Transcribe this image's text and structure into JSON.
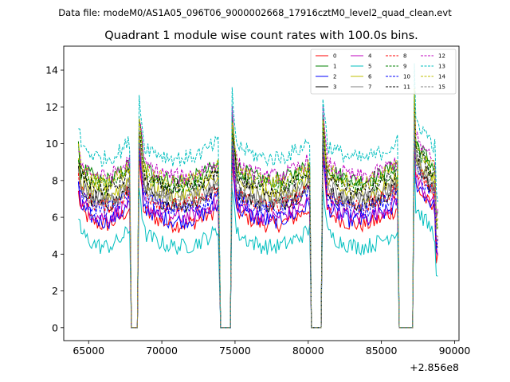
{
  "figure": {
    "suptitle": "Data file: modeM0/AS1A05_096T06_9000002668_17916cztM0_level2_quad_clean.evt",
    "offset_label": "+2.856e8"
  },
  "chart_data": {
    "type": "line",
    "title": "Quadrant 1 module wise count rates with 100.0s bins.",
    "xlabel": "",
    "ylabel": "",
    "x_offset": 285600000,
    "xlim": [
      63300,
      90300
    ],
    "ylim": [
      -0.7,
      15.3
    ],
    "x_ticks": [
      65000,
      70000,
      75000,
      80000,
      85000,
      90000
    ],
    "x_tick_labels": [
      "65000",
      "70000",
      "75000",
      "80000",
      "85000",
      "90000"
    ],
    "y_ticks": [
      0,
      2,
      4,
      6,
      8,
      10,
      12,
      14
    ],
    "y_tick_labels": [
      "0",
      "2",
      "4",
      "6",
      "8",
      "10",
      "12",
      "14"
    ],
    "legend_location": "upper right",
    "segments": [
      {
        "start": 64300,
        "end": 67800
      },
      {
        "start": 68450,
        "end": 73900
      },
      {
        "start": 74800,
        "end": 80100
      },
      {
        "start": 81000,
        "end": 86100
      },
      {
        "start": 87250,
        "end": 88900
      }
    ],
    "gap_level": 0,
    "series": [
      {
        "name": "0",
        "color": "#ff0000",
        "dash": "solid",
        "base": 6.2
      },
      {
        "name": "1",
        "color": "#008000",
        "dash": "solid",
        "base": 8.6
      },
      {
        "name": "2",
        "color": "#0000ff",
        "dash": "solid",
        "base": 6.4
      },
      {
        "name": "3",
        "color": "#000000",
        "dash": "solid",
        "base": 7.3
      },
      {
        "name": "4",
        "color": "#bf00bf",
        "dash": "solid",
        "base": 6.6
      },
      {
        "name": "5",
        "color": "#00bfbf",
        "dash": "solid",
        "base": 5.0
      },
      {
        "name": "6",
        "color": "#bfbf00",
        "dash": "solid",
        "base": 7.8
      },
      {
        "name": "7",
        "color": "#808080",
        "dash": "solid",
        "base": 7.6
      },
      {
        "name": "8",
        "color": "#ff0000",
        "dash": "dashed",
        "base": 7.2
      },
      {
        "name": "9",
        "color": "#008000",
        "dash": "dashed",
        "base": 8.3
      },
      {
        "name": "10",
        "color": "#0000ff",
        "dash": "dashed",
        "base": 7.0
      },
      {
        "name": "11",
        "color": "#000000",
        "dash": "dashed",
        "base": 8.1
      },
      {
        "name": "12",
        "color": "#bf00bf",
        "dash": "dashed",
        "base": 8.8
      },
      {
        "name": "13",
        "color": "#00bfbf",
        "dash": "dashed",
        "base": 9.8
      },
      {
        "name": "14",
        "color": "#bfbf00",
        "dash": "dashed",
        "base": 8.5
      },
      {
        "name": "15",
        "color": "#808080",
        "dash": "dashed",
        "base": 7.4
      }
    ]
  }
}
